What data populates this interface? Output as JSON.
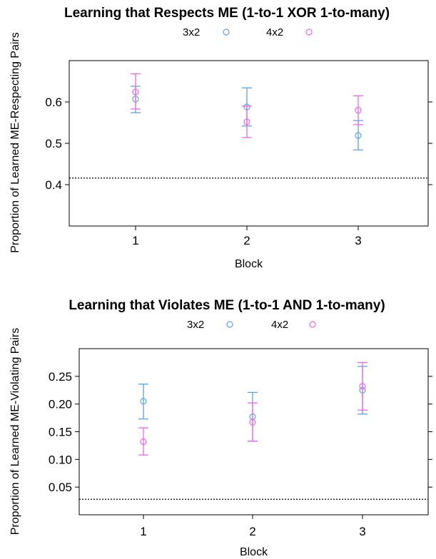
{
  "chart_data": [
    {
      "type": "scatter",
      "title": "Learning that Respects ME (1-to-1 XOR 1-to-many)",
      "xlabel": "Block",
      "ylabel": "Proportion of Learned ME-Respecting Pairs",
      "categories": [
        "1",
        "2",
        "3"
      ],
      "x_ticks": [
        "1",
        "2",
        "3"
      ],
      "y_ticks": [
        "0.4",
        "0.5",
        "0.6"
      ],
      "ylim": [
        0.3,
        0.7
      ],
      "reference_line": 0.416,
      "legend_position": "top",
      "grid": false,
      "series": [
        {
          "name": "3x2",
          "color": "#5aa2f2",
          "values": [
            0.607,
            0.588,
            0.519
          ],
          "lower": [
            0.574,
            0.542,
            0.484
          ],
          "upper": [
            0.638,
            0.634,
            0.555
          ]
        },
        {
          "name": "4x2",
          "color": "#f063f0",
          "values": [
            0.624,
            0.552,
            0.58
          ],
          "lower": [
            0.583,
            0.514,
            0.545
          ],
          "upper": [
            0.668,
            0.59,
            0.615
          ]
        }
      ]
    },
    {
      "type": "scatter",
      "title": "Learning that Violates ME (1-to-1 AND 1-to-many)",
      "xlabel": "Block",
      "ylabel": "Proportion of Learned ME-Violating Pairs",
      "categories": [
        "1",
        "2",
        "3"
      ],
      "x_ticks": [
        "1",
        "2",
        "3"
      ],
      "y_ticks": [
        "0.05",
        "0.10",
        "0.15",
        "0.20",
        "0.25"
      ],
      "ylim": [
        0.0,
        0.3
      ],
      "reference_line": 0.028,
      "legend_position": "top",
      "grid": false,
      "series": [
        {
          "name": "3x2",
          "color": "#5aa2f2",
          "values": [
            0.205,
            0.177,
            0.225
          ],
          "lower": [
            0.173,
            0.133,
            0.182
          ],
          "upper": [
            0.236,
            0.221,
            0.268
          ]
        },
        {
          "name": "4x2",
          "color": "#f063f0",
          "values": [
            0.132,
            0.167,
            0.232
          ],
          "lower": [
            0.108,
            0.133,
            0.189
          ],
          "upper": [
            0.157,
            0.202,
            0.275
          ]
        }
      ]
    }
  ]
}
